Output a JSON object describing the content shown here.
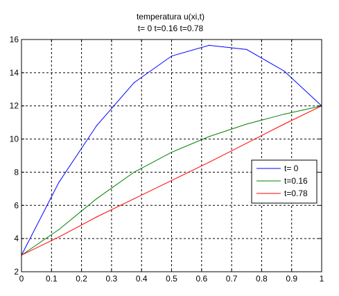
{
  "chart_data": {
    "type": "line",
    "title": "temperatura u(xi,t)",
    "subtitle": "t= 0  t=0.16  t=0.78",
    "xlabel": "",
    "ylabel": "",
    "xlim": [
      0,
      1
    ],
    "ylim": [
      2,
      16
    ],
    "grid": true,
    "grid_style": "dashed",
    "legend_position": "right",
    "x_ticks": [
      "0",
      "0.1",
      "0.2",
      "0.3",
      "0.4",
      "0.5",
      "0.6",
      "0.7",
      "0.8",
      "0.9",
      "1"
    ],
    "y_ticks": [
      "2",
      "4",
      "6",
      "8",
      "10",
      "12",
      "14",
      "16"
    ],
    "series": [
      {
        "name": "t= 0",
        "color": "#0000ff",
        "x": [
          0,
          0.125,
          0.25,
          0.375,
          0.5,
          0.625,
          0.75,
          0.875,
          1
        ],
        "y": [
          3.0,
          7.4,
          10.8,
          13.4,
          15.0,
          15.65,
          15.4,
          14.1,
          12.0
        ]
      },
      {
        "name": "t=0.16",
        "color": "#008000",
        "x": [
          0,
          0.125,
          0.25,
          0.375,
          0.5,
          0.625,
          0.75,
          0.875,
          1
        ],
        "y": [
          3.0,
          4.55,
          6.4,
          8.0,
          9.2,
          10.15,
          10.9,
          11.5,
          12.0
        ]
      },
      {
        "name": "t=0.78",
        "color": "#ff0000",
        "x": [
          0,
          0.125,
          0.25,
          0.375,
          0.5,
          0.625,
          0.75,
          0.875,
          1
        ],
        "y": [
          3.0,
          4.1,
          5.3,
          6.4,
          7.5,
          8.6,
          9.75,
          10.9,
          12.0
        ]
      }
    ]
  }
}
